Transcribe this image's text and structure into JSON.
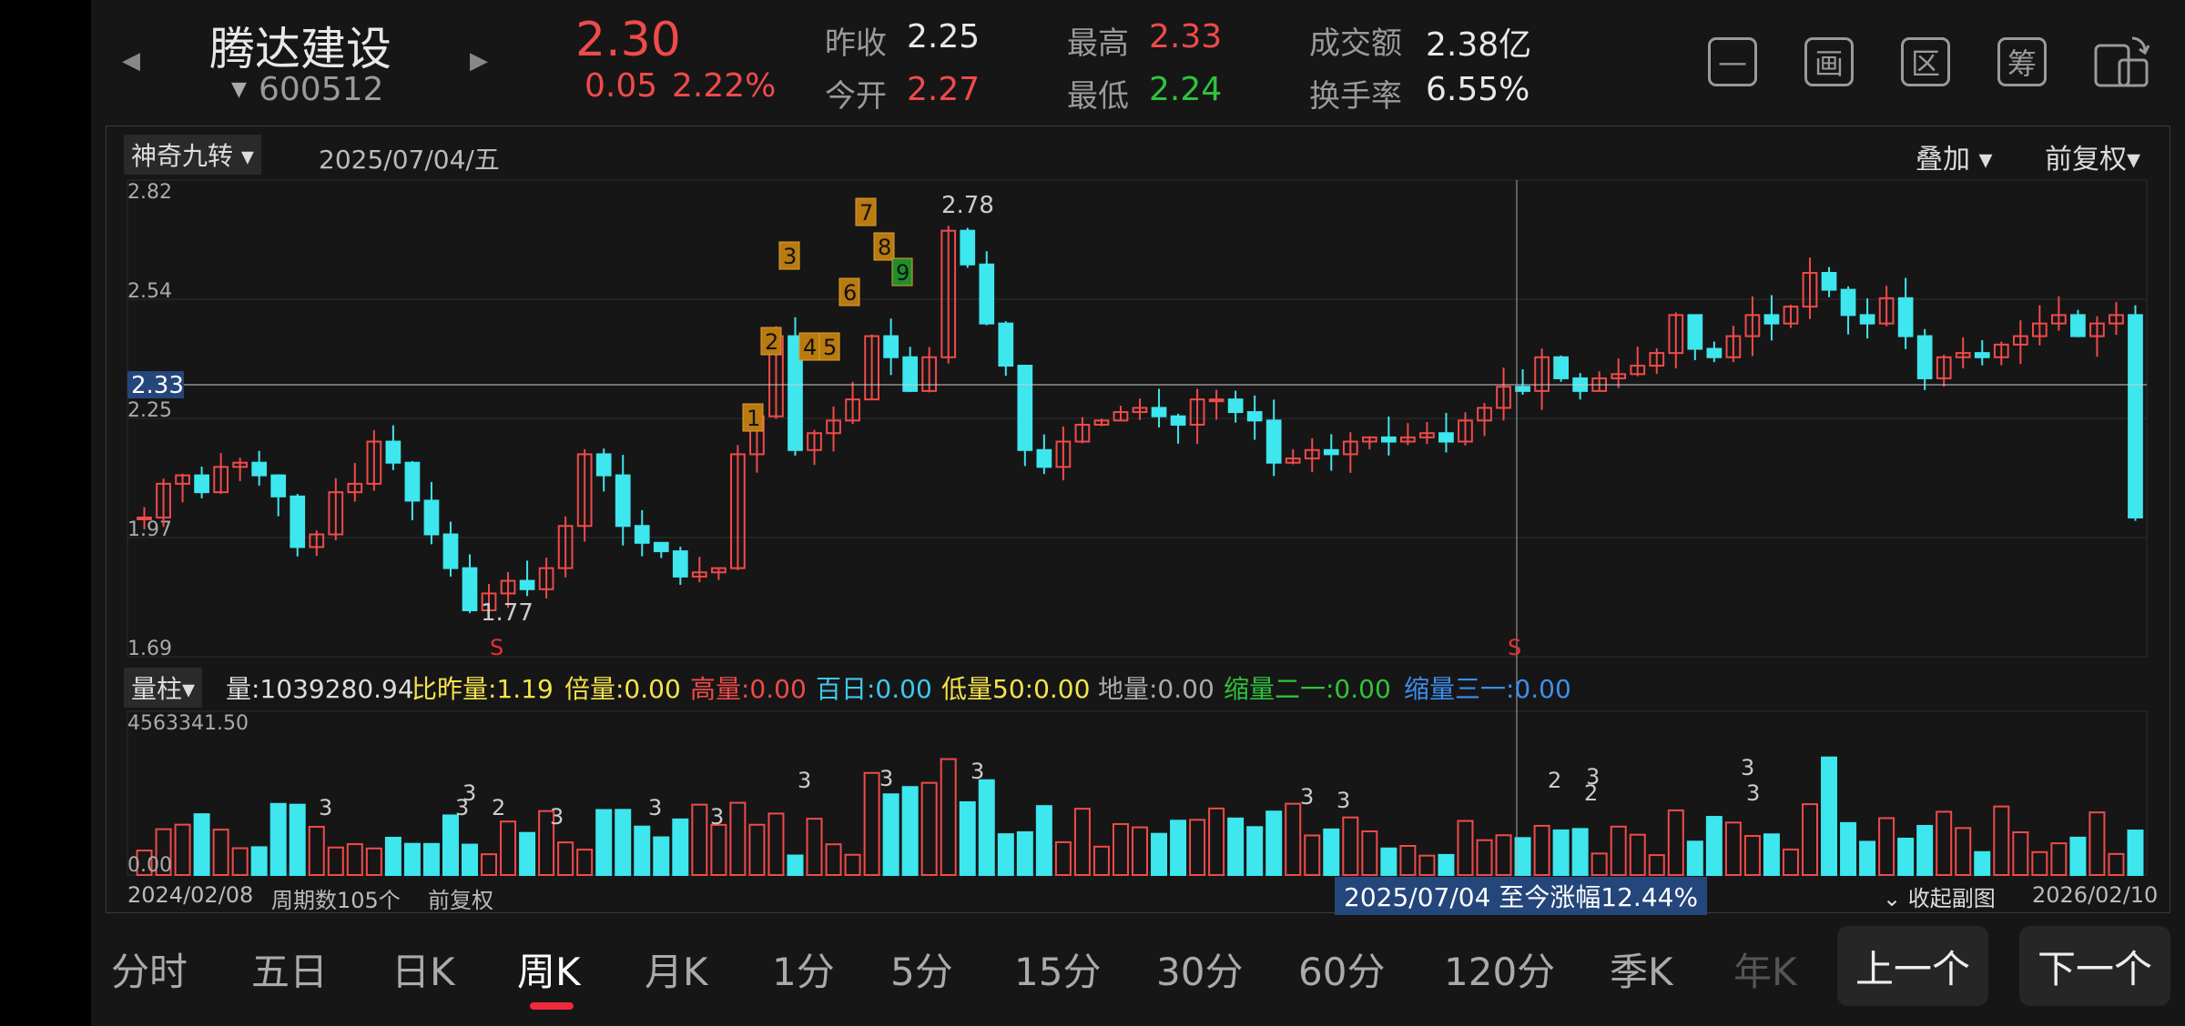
{
  "header": {
    "stock_name": "腾达建设",
    "stock_code": "600512",
    "code_dropdown_glyph": "▼",
    "prev_arrow": "◀",
    "next_arrow": "▶",
    "price": "2.30",
    "change": "0.05",
    "change_pct": "2.22%",
    "stats": {
      "prev_close_label": "昨收",
      "prev_close": "2.25",
      "open_label": "今开",
      "open": "2.27",
      "high_label": "最高",
      "high": "2.33",
      "low_label": "最低",
      "low": "2.24",
      "turnover_label": "成交额",
      "turnover": "2.38亿",
      "turnover_rate_label": "换手率",
      "turnover_rate": "6.55%"
    },
    "icons": [
      {
        "name": "minus-icon",
        "glyph": "—"
      },
      {
        "name": "draw-icon",
        "glyph": "画"
      },
      {
        "name": "range-icon",
        "glyph": "区"
      },
      {
        "name": "chips-icon",
        "glyph": "筹"
      },
      {
        "name": "rotate-screen-icon",
        "glyph": ""
      }
    ]
  },
  "chart": {
    "indicator_dropdown": "神奇九转",
    "date": "2025/07/04/五",
    "overlay_label": "叠加",
    "adjust_label": "前复权",
    "y_labels": [
      "2.82",
      "2.54",
      "2.25",
      "1.97",
      "1.69"
    ],
    "crosshair_price": "2.33",
    "high_annotation": "2.78",
    "low_annotation": "1.77",
    "nine_markers": [
      "1",
      "2",
      "3",
      "4",
      "5",
      "6",
      "7",
      "8",
      "9"
    ],
    "sell_marker": "S",
    "colors": {
      "up": "#f04a4a",
      "down": "#3ee6ee",
      "nine_bg": "#b97a10",
      "nine_green": "#1e8f2a"
    }
  },
  "volume": {
    "type_dropdown": "量柱",
    "stats": {
      "vol": "量:1039280.94",
      "ratio": "比昨量:1.19",
      "multiple": "倍量:0.00",
      "high": "高量:0.00",
      "hundred_day": "百日:0.00",
      "low50": "低量50:0.00",
      "ground": "地量:0.00",
      "shrink21": "缩量二一:0.00",
      "shrink31": "缩量三一:0.00"
    },
    "max_label": "4563341.50",
    "zero_label": "0.00",
    "digit_marks": [
      "3",
      "3",
      "2",
      "3",
      "3",
      "3",
      "3",
      "3",
      "3",
      "3",
      "3",
      "2",
      "3",
      "3",
      "3",
      "2",
      "3"
    ]
  },
  "footer_info": {
    "start_date": "2024/02/08",
    "periods": "周期数105个",
    "adjust": "前复权",
    "range_change": "2025/07/04 至今涨幅12.44%",
    "collapse": "收起副图",
    "collapse_glyph": "⌄",
    "end_date": "2026/02/10"
  },
  "tabs": [
    "分时",
    "五日",
    "日K",
    "周K",
    "月K",
    "1分",
    "5分",
    "15分",
    "30分",
    "60分",
    "120分",
    "季K",
    "年K"
  ],
  "active_tab": "周K",
  "buttons": {
    "prev": "上一个",
    "next": "下一个"
  }
}
